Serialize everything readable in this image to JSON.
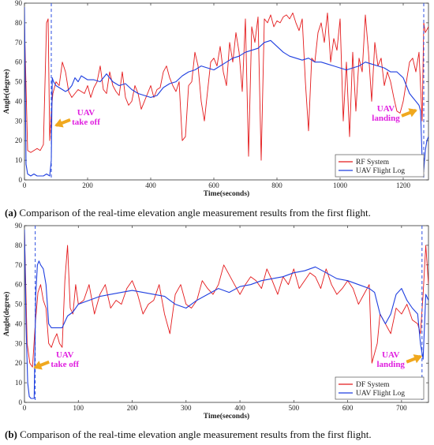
{
  "charts": [
    {
      "caption": {
        "letter": "(a)",
        "text": "Comparison of the real-time elevation angle measurement results from the first flight."
      },
      "chart_data": {
        "type": "line",
        "xlabel": "Time(seconds)",
        "ylabel": "Angle(degree)",
        "xlim": [
          0,
          1280
        ],
        "ylim": [
          0,
          90
        ],
        "xticks": [
          0,
          200,
          400,
          600,
          800,
          1000,
          1200
        ],
        "yticks": [
          0,
          10,
          20,
          30,
          40,
          50,
          60,
          70,
          80,
          90
        ],
        "grid": false,
        "legend_position": "bottom-right",
        "vlines": [
          85,
          1265
        ],
        "annotations": [
          {
            "lines": [
              "UAV",
              "take off"
            ],
            "x": 195,
            "y": 33
          },
          {
            "lines": [
              "UAV",
              "landing"
            ],
            "x": 1145,
            "y": 35
          }
        ],
        "series": [
          {
            "name": "RF System",
            "color": "#e41a1c",
            "x": [
              0,
              10,
              20,
              30,
              40,
              50,
              60,
              70,
              75,
              80,
              85,
              90,
              100,
              110,
              120,
              130,
              140,
              150,
              160,
              170,
              180,
              190,
              200,
              210,
              220,
              230,
              240,
              250,
              260,
              270,
              280,
              290,
              300,
              310,
              320,
              330,
              340,
              350,
              360,
              370,
              380,
              390,
              400,
              410,
              420,
              430,
              440,
              450,
              460,
              470,
              480,
              490,
              500,
              510,
              520,
              530,
              540,
              550,
              560,
              570,
              580,
              590,
              600,
              610,
              620,
              630,
              640,
              650,
              660,
              670,
              680,
              690,
              700,
              710,
              720,
              730,
              740,
              750,
              760,
              770,
              780,
              790,
              800,
              810,
              820,
              830,
              840,
              850,
              860,
              870,
              880,
              890,
              900,
              910,
              920,
              930,
              940,
              950,
              960,
              970,
              980,
              990,
              1000,
              1010,
              1020,
              1030,
              1040,
              1050,
              1060,
              1070,
              1080,
              1090,
              1100,
              1110,
              1120,
              1130,
              1140,
              1150,
              1160,
              1170,
              1180,
              1190,
              1200,
              1210,
              1220,
              1230,
              1240,
              1250,
              1260,
              1265,
              1270,
              1280
            ],
            "values": [
              80,
              15,
              14,
              15,
              16,
              15,
              18,
              80,
              82,
              20,
              35,
              44,
              50,
              48,
              60,
              55,
              45,
              42,
              44,
              46,
              45,
              44,
              48,
              42,
              47,
              50,
              58,
              46,
              44,
              55,
              48,
              45,
              43,
              55,
              42,
              38,
              40,
              48,
              44,
              36,
              40,
              44,
              48,
              42,
              46,
              47,
              55,
              58,
              52,
              48,
              45,
              50,
              20,
              22,
              48,
              50,
              65,
              58,
              40,
              30,
              45,
              60,
              62,
              58,
              68,
              55,
              48,
              70,
              60,
              75,
              65,
              45,
              82,
              12,
              78,
              70,
              83,
              10,
              82,
              80,
              84,
              78,
              81,
              80,
              83,
              84,
              82,
              85,
              80,
              76,
              82,
              50,
              25,
              62,
              60,
              75,
              80,
              70,
              85,
              60,
              72,
              66,
              82,
              30,
              60,
              22,
              65,
              35,
              62,
              55,
              84,
              65,
              40,
              70,
              58,
              62,
              48,
              55,
              50,
              42,
              35,
              34,
              40,
              50,
              60,
              62,
              55,
              65,
              30,
              80,
              75,
              78
            ]
          },
          {
            "name": "UAV Flight Log",
            "color": "#1f3fe0",
            "x": [
              0,
              5,
              10,
              20,
              30,
              40,
              50,
              60,
              70,
              80,
              85,
              88,
              92,
              100,
              110,
              120,
              130,
              140,
              150,
              160,
              170,
              180,
              190,
              200,
              220,
              240,
              260,
              280,
              300,
              320,
              340,
              360,
              380,
              400,
              420,
              440,
              460,
              480,
              500,
              520,
              540,
              560,
              580,
              600,
              620,
              640,
              660,
              680,
              700,
              720,
              740,
              760,
              780,
              800,
              820,
              840,
              860,
              880,
              900,
              920,
              940,
              960,
              980,
              1000,
              1020,
              1040,
              1060,
              1080,
              1100,
              1120,
              1140,
              1160,
              1180,
              1200,
              1220,
              1230,
              1240,
              1250,
              1255,
              1260,
              1265,
              1270,
              1275,
              1280
            ],
            "values": [
              88,
              8,
              3,
              2,
              3,
              2,
              2,
              2,
              3,
              2,
              10,
              52,
              50,
              48,
              47,
              46,
              45,
              46,
              48,
              52,
              50,
              53,
              52,
              51,
              51,
              50,
              54,
              50,
              48,
              49,
              46,
              44,
              43,
              42,
              43,
              47,
              49,
              50,
              53,
              55,
              56,
              58,
              57,
              56,
              58,
              60,
              62,
              63,
              65,
              66,
              67,
              70,
              71,
              68,
              65,
              63,
              62,
              61,
              62,
              60,
              60,
              59,
              58,
              57,
              56,
              57,
              58,
              60,
              59,
              58,
              57,
              55,
              55,
              52,
              44,
              42,
              40,
              38,
              35,
              10,
              5,
              15,
              20,
              22
            ]
          }
        ]
      }
    },
    {
      "caption": {
        "letter": "(b)",
        "text": "Comparison of the real-time elevation angle measurement results from the first flight."
      },
      "chart_data": {
        "type": "line",
        "xlabel": "Time(seconds)",
        "ylabel": "Angle(degree)",
        "xlim": [
          0,
          750
        ],
        "ylim": [
          0,
          90
        ],
        "xticks": [
          0,
          100,
          200,
          300,
          400,
          500,
          600,
          700
        ],
        "yticks": [
          0,
          10,
          20,
          30,
          40,
          50,
          60,
          70,
          80,
          90
        ],
        "grid": false,
        "legend_position": "bottom-right",
        "vlines": [
          20,
          738
        ],
        "annotations": [
          {
            "lines": [
              "UAV",
              "take off"
            ],
            "x": 75,
            "y": 23
          },
          {
            "lines": [
              "UAV",
              "landing"
            ],
            "x": 680,
            "y": 23
          }
        ],
        "series": [
          {
            "name": "DF System",
            "color": "#e41a1c",
            "x": [
              0,
              5,
              10,
              15,
              20,
              25,
              30,
              35,
              40,
              45,
              50,
              55,
              60,
              65,
              70,
              75,
              80,
              85,
              90,
              95,
              100,
              110,
              120,
              130,
              140,
              150,
              160,
              170,
              180,
              190,
              200,
              210,
              220,
              230,
              240,
              250,
              260,
              270,
              280,
              290,
              300,
              310,
              320,
              330,
              340,
              350,
              360,
              370,
              380,
              390,
              400,
              410,
              420,
              430,
              440,
              450,
              460,
              470,
              480,
              490,
              500,
              510,
              520,
              530,
              540,
              550,
              560,
              570,
              580,
              590,
              600,
              610,
              620,
              630,
              640,
              645,
              650,
              655,
              660,
              670,
              680,
              690,
              700,
              710,
              720,
              730,
              735,
              740,
              745,
              750
            ],
            "values": [
              88,
              30,
              20,
              18,
              40,
              56,
              60,
              52,
              48,
              30,
              28,
              32,
              35,
              30,
              28,
              62,
              80,
              48,
              45,
              60,
              50,
              52,
              60,
              45,
              55,
              60,
              48,
              52,
              50,
              58,
              62,
              55,
              45,
              50,
              52,
              60,
              45,
              35,
              55,
              60,
              50,
              48,
              52,
              62,
              58,
              55,
              60,
              70,
              65,
              60,
              55,
              60,
              64,
              62,
              58,
              68,
              62,
              55,
              64,
              60,
              68,
              58,
              62,
              66,
              64,
              58,
              68,
              60,
              55,
              58,
              62,
              58,
              50,
              55,
              60,
              20,
              25,
              30,
              45,
              40,
              35,
              48,
              45,
              50,
              42,
              40,
              35,
              55,
              80,
              60
            ]
          },
          {
            "name": "UAV Flight Log",
            "color": "#1f3fe0",
            "x": [
              0,
              3,
              6,
              9,
              12,
              15,
              18,
              21,
              24,
              27,
              30,
              35,
              40,
              45,
              50,
              55,
              60,
              70,
              80,
              90,
              100,
              120,
              140,
              160,
              180,
              200,
              220,
              240,
              260,
              280,
              300,
              320,
              340,
              360,
              380,
              400,
              420,
              440,
              460,
              480,
              500,
              520,
              540,
              560,
              580,
              600,
              620,
              640,
              650,
              660,
              670,
              680,
              690,
              700,
              710,
              720,
              730,
              735,
              740,
              745,
              750
            ],
            "values": [
              88,
              40,
              10,
              3,
              2,
              2,
              2,
              55,
              70,
              72,
              70,
              68,
              60,
              40,
              38,
              38,
              38,
              38,
              44,
              46,
              50,
              52,
              54,
              55,
              56,
              57,
              56,
              55,
              54,
              50,
              48,
              52,
              55,
              58,
              56,
              59,
              60,
              62,
              63,
              64,
              66,
              67,
              69,
              66,
              63,
              62,
              60,
              58,
              56,
              45,
              40,
              45,
              55,
              58,
              52,
              48,
              45,
              30,
              22,
              55,
              52
            ]
          }
        ]
      }
    }
  ]
}
